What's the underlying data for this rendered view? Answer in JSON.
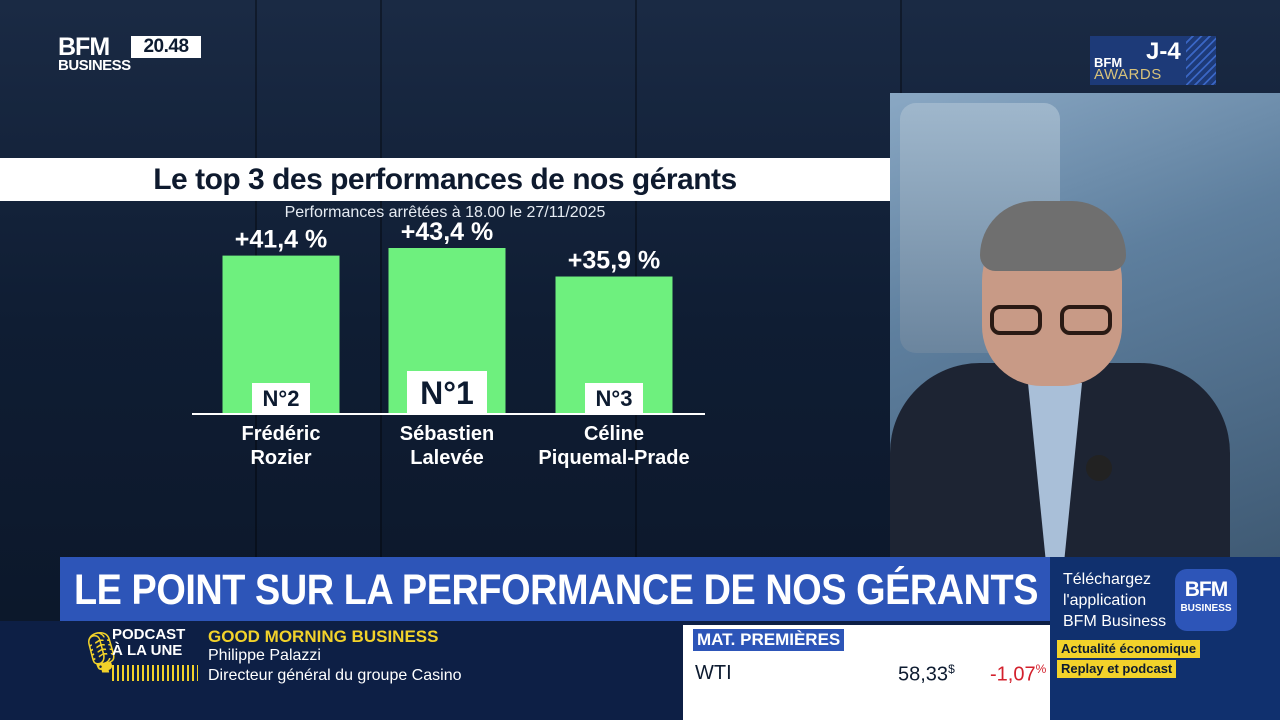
{
  "channel": {
    "logo_line1": "BFM",
    "logo_line2": "BUSINESS",
    "time": "20.48"
  },
  "awards": {
    "bfm": "BFM",
    "awards": "AWARDS",
    "countdown": "J-4"
  },
  "chart_data": {
    "type": "bar",
    "title": "Le top 3 des performances de nos gérants",
    "subtitle": "Performances arrêtées à 18.00 le 27/11/2025",
    "categories": [
      "Frédéric Rozier",
      "Sébastien Lalevée",
      "Céline Piquemal-Prade"
    ],
    "category_lines": [
      [
        "Frédéric",
        "Rozier"
      ],
      [
        "Sébastien",
        "Lalevée"
      ],
      [
        "Céline",
        "Piquemal-Prade"
      ]
    ],
    "values": [
      41.4,
      43.4,
      35.9
    ],
    "value_labels": [
      "+41,4 %",
      "+43,4 %",
      "+35,9 %"
    ],
    "ranks": [
      "N°2",
      "N°1",
      "N°3"
    ],
    "unit": "%",
    "bar_color": "#6ef07e",
    "ylim": [
      0,
      50
    ],
    "grid": false
  },
  "headline": "LE POINT SUR LA PERFORMANCE DE NOS GÉRANTS",
  "app_promo": {
    "line1": "Téléchargez",
    "line2": "l'application",
    "line3": "BFM Business",
    "logo_line1": "BFM",
    "logo_line2": "BUSINESS",
    "tag1": "Actualité économique",
    "tag2": "Replay et podcast",
    "tag_color": "#f2d22a"
  },
  "podcast": {
    "line1": "PODCAST",
    "line2": "À LA UNE",
    "icon": "microphone-icon"
  },
  "show": {
    "name": "GOOD MORNING BUSINESS",
    "guest": "Philippe Palazzi",
    "role": "Directeur général du groupe Casino"
  },
  "market": {
    "label": "MAT. PREMIÈRES",
    "name": "WTI",
    "value": "58,33",
    "currency": "$",
    "change": "-1,07",
    "change_unit": "%",
    "change_color": "#d3202c"
  }
}
